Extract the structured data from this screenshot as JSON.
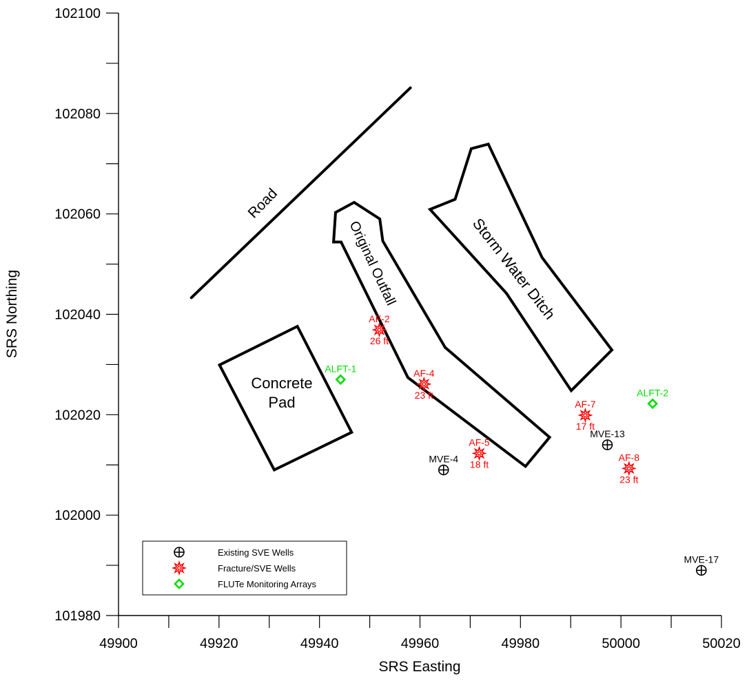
{
  "chart_data": {
    "type": "scatter",
    "xlabel": "SRS Easting",
    "ylabel": "SRS Northing",
    "xlim": [
      49900,
      50020
    ],
    "ylim": [
      101980,
      102100
    ],
    "x_ticks": [
      49900,
      49920,
      49940,
      49960,
      49980,
      50000,
      50020
    ],
    "y_ticks": [
      101980,
      102000,
      102020,
      102040,
      102060,
      102080,
      102100
    ],
    "x_tick_labels": [
      "49900",
      "49920",
      "49940",
      "49960",
      "49980",
      "50000",
      "50020"
    ],
    "y_tick_labels": [
      "101980",
      "102000",
      "102020",
      "102040",
      "102060",
      "102080",
      "102100"
    ],
    "grid": false,
    "legend_position": "bottom-left",
    "legend": [
      {
        "label": "Existing SVE Wells",
        "symbol": "circle-cross",
        "color": "#000000"
      },
      {
        "label": "Fracture/SVE Wells",
        "symbol": "gear",
        "color": "#ff0000"
      },
      {
        "label": "FLUTe Monitoring Arrays",
        "symbol": "diamond",
        "color": "#00dd00"
      }
    ],
    "series": [
      {
        "name": "Existing SVE Wells",
        "symbol": "circle-cross",
        "color": "#000000",
        "points": [
          {
            "label": "MVE-4",
            "x": 49964.7,
            "y": 102009.0
          },
          {
            "label": "MVE-13",
            "x": 49997.3,
            "y": 102014.0
          },
          {
            "label": "MVE-17",
            "x": 50016.0,
            "y": 101989.0
          }
        ]
      },
      {
        "name": "Fracture/SVE Wells",
        "symbol": "gear",
        "color": "#ff0000",
        "points": [
          {
            "label": "AF-2",
            "depth": "26 ft",
            "x": 49951.9,
            "y": 102036.9
          },
          {
            "label": "AF-4",
            "depth": "23 ft",
            "x": 49960.8,
            "y": 102026.1
          },
          {
            "label": "AF-5",
            "depth": "18 ft",
            "x": 49971.8,
            "y": 102012.3
          },
          {
            "label": "AF-7",
            "depth": "17 ft",
            "x": 49992.9,
            "y": 102019.9
          },
          {
            "label": "AF-8",
            "depth": "23 ft",
            "x": 50001.6,
            "y": 102009.3
          }
        ]
      },
      {
        "name": "FLUTe Monitoring Arrays",
        "symbol": "diamond",
        "color": "#00dd00",
        "points": [
          {
            "label": "ALFT-1",
            "x": 49944.2,
            "y": 102027.0
          },
          {
            "label": "ALFT-2",
            "x": 50006.3,
            "y": 102022.2
          }
        ]
      }
    ],
    "features": [
      {
        "name": "Road",
        "kind": "line",
        "points": [
          [
            49914.5,
            102043.3
          ],
          [
            49958.1,
            102085.1
          ]
        ]
      },
      {
        "name": "Original Outfall",
        "kind": "polygon",
        "points": [
          [
            49943.2,
            102060.3
          ],
          [
            49946.9,
            102062.3
          ],
          [
            49952.0,
            102059.0
          ],
          [
            49952.6,
            102054.6
          ],
          [
            49965.0,
            102033.4
          ],
          [
            49985.8,
            102015.5
          ],
          [
            49981.0,
            102009.7
          ],
          [
            49957.6,
            102027.4
          ],
          [
            49944.3,
            102054.4
          ],
          [
            49942.8,
            102054.4
          ]
        ]
      },
      {
        "name": "Storm Water Ditch",
        "kind": "polygon",
        "points": [
          [
            49962.0,
            102060.9
          ],
          [
            49967.0,
            102062.9
          ],
          [
            49970.2,
            102073.0
          ],
          [
            49973.6,
            102073.9
          ],
          [
            49984.3,
            102051.3
          ],
          [
            49998.2,
            102032.9
          ],
          [
            49990.1,
            102024.8
          ],
          [
            49977.2,
            102044.2
          ]
        ]
      },
      {
        "name": "Concrete Pad",
        "kind": "polygon",
        "points": [
          [
            49920.1,
            102029.9
          ],
          [
            49935.6,
            102037.6
          ],
          [
            49946.4,
            102016.5
          ],
          [
            49931.0,
            102009.0
          ]
        ]
      }
    ]
  }
}
